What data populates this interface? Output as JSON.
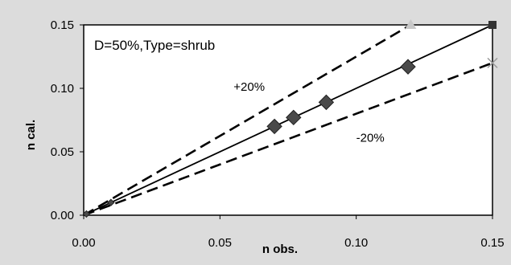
{
  "chart_data": {
    "type": "scatter",
    "title": "",
    "xlabel": "n obs.",
    "ylabel": "n cal.",
    "xlim": [
      0,
      0.15
    ],
    "ylim": [
      0,
      0.15
    ],
    "x_ticks": [
      "0.00",
      "0.05",
      "0.10",
      "0.15"
    ],
    "y_ticks": [
      "0.00",
      "0.05",
      "0.10",
      "0.15"
    ],
    "grid": false,
    "panel_label": "D=50%,Type=shrub",
    "annotations": [
      {
        "text": "+20%",
        "x": 0.055,
        "y": 0.098
      },
      {
        "text": "-20%",
        "x": 0.1,
        "y": 0.058
      }
    ],
    "series": [
      {
        "kind": "line",
        "style": "solid",
        "x": [
          0,
          0.15
        ],
        "y": [
          0,
          0.15
        ]
      },
      {
        "kind": "line",
        "style": "dashed",
        "x": [
          0,
          0.12
        ],
        "y": [
          0,
          0.15
        ]
      },
      {
        "kind": "line",
        "style": "dashed",
        "x": [
          0,
          0.15
        ],
        "y": [
          0,
          0.12
        ]
      },
      {
        "kind": "markers",
        "marker": "diamond",
        "x": [
          0.001,
          0.01,
          0.07,
          0.077,
          0.089,
          0.119
        ],
        "y": [
          0.001,
          0.01,
          0.07,
          0.077,
          0.089,
          0.117
        ]
      }
    ],
    "colors": {
      "background": "#dcdcdc",
      "plot_area": "#ffffff",
      "line": "#000000",
      "marker": "#4a4a4a",
      "end_marker_triangle": "#c8c8c8",
      "end_marker_square": "#333333",
      "end_marker_cross": "#9a9a9a"
    }
  }
}
